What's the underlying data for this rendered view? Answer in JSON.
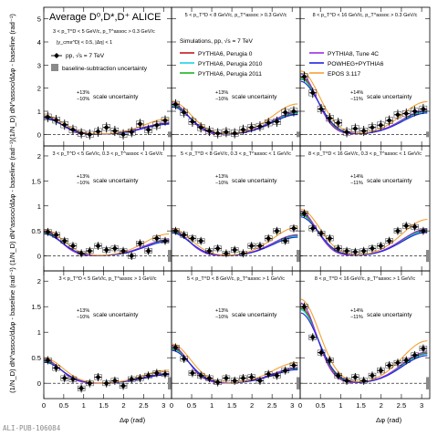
{
  "figure": {
    "title": "Average D⁰,D*,D⁺ ALICE",
    "y_axis_label": "(1/N_D) dN^assoc/dΔφ - baseline (rad⁻¹)",
    "x_axis_label": "Δφ (rad)",
    "footer": "ALI-PUB-106084",
    "scale_uncertainty_text": "scale uncertainty",
    "legend_left": {
      "kinematics_1": "3 < p_T^D < 5 GeV/c, p_T^assoc > 0.3 GeV/c",
      "kinematics_2": "|y_cms^D| < 0.5, |Δη| < 1",
      "data_entry": "pp, √s = 7 TeV",
      "baseline_entry": "baseline-subtraction uncertainty"
    },
    "legend_middle": {
      "header": "Simulations, pp, √s = 7 TeV",
      "entries": [
        {
          "name": "PYTHIA6, Perugia 0",
          "color": "#c2171c"
        },
        {
          "name": "PYTHIA6, Perugia 2010",
          "color": "#1fd0e8"
        },
        {
          "name": "PYTHIA6, Perugia 2011",
          "color": "#1fb324"
        }
      ]
    },
    "legend_right": {
      "entries": [
        {
          "name": "PYTHIA8, Tune 4C",
          "color": "#9a2ee0"
        },
        {
          "name": "POWHEG+PYTHIA6",
          "color": "#2222e0"
        },
        {
          "name": "EPOS 3.117",
          "color": "#f5a033"
        }
      ]
    }
  },
  "chart_data": [
    {
      "type": "scatter",
      "row": 1,
      "col": 1,
      "label": "",
      "scale_unc": [
        "+13%",
        "−10%"
      ],
      "ylim": [
        -0.5,
        5.5
      ],
      "x": [
        0.1,
        0.31,
        0.52,
        0.73,
        0.94,
        1.15,
        1.36,
        1.57,
        1.78,
        1.99,
        2.2,
        2.41,
        2.62,
        2.83,
        3.04
      ],
      "y": [
        0.75,
        0.62,
        0.42,
        0.2,
        0.05,
        0.0,
        0.12,
        0.3,
        0.15,
        0.0,
        0.1,
        0.45,
        0.2,
        0.4,
        0.6
      ]
    },
    {
      "type": "scatter",
      "row": 1,
      "col": 2,
      "label": "5 < p_T^D < 8 GeV/c, p_T^assoc > 0.3 GeV/c",
      "scale_unc": [
        "+13%",
        "−10%"
      ],
      "ylim": [
        -0.5,
        5.5
      ],
      "x": [
        0.1,
        0.31,
        0.52,
        0.73,
        0.94,
        1.15,
        1.36,
        1.57,
        1.78,
        1.99,
        2.2,
        2.41,
        2.62,
        2.83,
        3.04
      ],
      "y": [
        1.3,
        0.95,
        0.55,
        0.3,
        0.15,
        0.05,
        0.1,
        0.05,
        0.2,
        0.3,
        0.35,
        0.5,
        0.55,
        0.95,
        1.0
      ]
    },
    {
      "type": "scatter",
      "row": 1,
      "col": 3,
      "label": "8 < p_T^D < 16 GeV/c, p_T^assoc > 0.3 GeV/c",
      "scale_unc": [
        "+14%",
        "−11%"
      ],
      "ylim": [
        -0.5,
        5.5
      ],
      "x": [
        0.1,
        0.31,
        0.52,
        0.73,
        0.94,
        1.15,
        1.36,
        1.57,
        1.78,
        1.99,
        2.2,
        2.41,
        2.62,
        2.83,
        3.04
      ],
      "y": [
        2.5,
        1.8,
        1.1,
        0.7,
        0.5,
        0.1,
        0.25,
        0.15,
        0.3,
        0.4,
        0.6,
        0.85,
        0.9,
        1.0,
        1.1
      ]
    },
    {
      "type": "scatter",
      "row": 2,
      "col": 1,
      "label": "3 < p_T^D < 5 GeV/c, 0.3 < p_T^assoc < 1 GeV/c",
      "scale_unc": [
        "+13%",
        "−10%"
      ],
      "ylim": [
        -0.3,
        2.2
      ],
      "x": [
        0.1,
        0.31,
        0.52,
        0.73,
        0.94,
        1.15,
        1.36,
        1.57,
        1.78,
        1.99,
        2.2,
        2.41,
        2.62,
        2.83,
        3.04
      ],
      "y": [
        0.48,
        0.42,
        0.3,
        0.2,
        0.05,
        0.1,
        0.2,
        0.12,
        0.15,
        0.1,
        0.0,
        0.25,
        0.1,
        0.35,
        0.3
      ]
    },
    {
      "type": "scatter",
      "row": 2,
      "col": 2,
      "label": "5 < p_T^D < 8 GeV/c, 0.3 < p_T^assoc < 1 GeV/c",
      "scale_unc": [
        "+13%",
        "−10%"
      ],
      "ylim": [
        -0.3,
        2.2
      ],
      "x": [
        0.1,
        0.31,
        0.52,
        0.73,
        0.94,
        1.15,
        1.36,
        1.57,
        1.78,
        1.99,
        2.2,
        2.41,
        2.62,
        2.83,
        3.04
      ],
      "y": [
        0.5,
        0.42,
        0.35,
        0.3,
        0.1,
        0.15,
        0.05,
        0.12,
        0.05,
        0.2,
        0.2,
        0.35,
        0.5,
        0.3,
        0.55
      ]
    },
    {
      "type": "scatter",
      "row": 2,
      "col": 3,
      "label": "8 < p_T^D < 16 GeV/c, 0.3 < p_T^assoc < 1 GeV/c",
      "scale_unc": [
        "+14%",
        "−11%"
      ],
      "ylim": [
        -0.3,
        2.2
      ],
      "x": [
        0.1,
        0.31,
        0.52,
        0.73,
        0.94,
        1.15,
        1.36,
        1.57,
        1.78,
        1.99,
        2.2,
        2.41,
        2.62,
        2.83,
        3.04
      ],
      "y": [
        0.85,
        0.55,
        0.45,
        0.35,
        0.15,
        0.1,
        0.08,
        0.1,
        0.15,
        0.2,
        0.3,
        0.5,
        0.6,
        0.58,
        0.5
      ]
    },
    {
      "type": "scatter",
      "row": 3,
      "col": 1,
      "label": "3 < p_T^D < 5 GeV/c, p_T^assoc > 1 GeV/c",
      "scale_unc": [
        "+13%",
        "−10%"
      ],
      "ylim": [
        -0.3,
        2.2
      ],
      "x": [
        0.1,
        0.31,
        0.52,
        0.73,
        0.94,
        1.15,
        1.36,
        1.57,
        1.78,
        1.99,
        2.2,
        2.41,
        2.62,
        2.83,
        3.04
      ],
      "y": [
        0.45,
        0.3,
        0.1,
        0.08,
        -0.1,
        0.0,
        0.12,
        0.0,
        0.05,
        -0.05,
        0.08,
        0.1,
        0.15,
        0.2,
        0.18
      ]
    },
    {
      "type": "scatter",
      "row": 3,
      "col": 2,
      "label": "5 < p_T^D < 8 GeV/c, p_T^assoc > 1 GeV/c",
      "scale_unc": [
        "+13%",
        "−10%"
      ],
      "ylim": [
        -0.3,
        2.2
      ],
      "x": [
        0.1,
        0.31,
        0.52,
        0.73,
        0.94,
        1.15,
        1.36,
        1.57,
        1.78,
        1.99,
        2.2,
        2.41,
        2.62,
        2.83,
        3.04
      ],
      "y": [
        0.7,
        0.48,
        0.2,
        0.15,
        0.1,
        0.02,
        0.1,
        0.05,
        0.1,
        0.12,
        0.05,
        0.18,
        0.15,
        0.25,
        0.35
      ]
    },
    {
      "type": "scatter",
      "row": 3,
      "col": 3,
      "label": "8 < p_T^D < 16 GeV/c, p_T^assoc > 1 GeV/c",
      "scale_unc": [
        "+14%",
        "−11%"
      ],
      "ylim": [
        -0.3,
        2.2
      ],
      "x": [
        0.1,
        0.31,
        0.52,
        0.73,
        0.94,
        1.15,
        1.36,
        1.57,
        1.78,
        1.99,
        2.2,
        2.41,
        2.62,
        2.83,
        3.04
      ],
      "y": [
        1.5,
        0.9,
        0.6,
        0.45,
        0.15,
        0.05,
        0.12,
        0.05,
        0.15,
        0.25,
        0.35,
        0.4,
        0.45,
        0.55,
        0.68
      ]
    }
  ],
  "axes": {
    "x_ticks": [
      "0",
      "0.5",
      "1",
      "1.5",
      "2",
      "2.5",
      "3"
    ],
    "x_tick_values": [
      0,
      0.5,
      1,
      1.5,
      2,
      2.5,
      3
    ],
    "x_range": [
      0,
      3.2
    ],
    "row1_y_ticks": [
      "0",
      "1",
      "2",
      "3",
      "4",
      "5"
    ],
    "row1_y_tick_values": [
      0,
      1,
      2,
      3,
      4,
      5
    ],
    "row2_y_ticks": [
      "0",
      "0.5",
      "1",
      "1.5",
      "2"
    ],
    "row2_y_tick_values": [
      0,
      0.5,
      1,
      1.5,
      2
    ],
    "row3_y_ticks": [
      "0",
      "0.5",
      "1",
      "1.5",
      "2"
    ],
    "row3_y_tick_values": [
      0,
      0.5,
      1,
      1.5,
      2
    ]
  }
}
